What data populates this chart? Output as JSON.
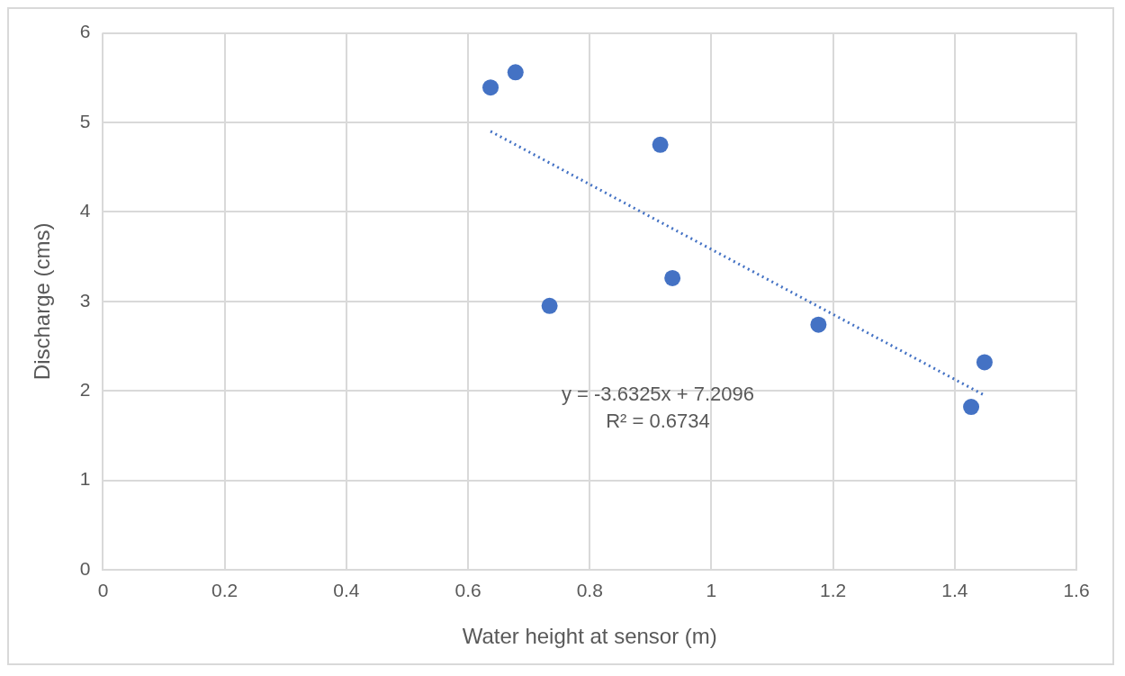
{
  "chart_data": {
    "type": "scatter",
    "xlabel": "Water height at sensor (m)",
    "ylabel": "Discharge (cms)",
    "xlim": [
      0,
      1.6
    ],
    "xticks": [
      0,
      0.2,
      0.4,
      0.6,
      0.8,
      1,
      1.2,
      1.4,
      1.6
    ],
    "ylim": [
      0,
      6
    ],
    "yticks": [
      0,
      1,
      2,
      3,
      4,
      5,
      6
    ],
    "grid": true,
    "legend": false,
    "series": [
      {
        "type": "scatter",
        "color": "#4472c4",
        "marker": "circle",
        "x": [
          0.637,
          0.678,
          0.734,
          0.916,
          0.936,
          1.176,
          1.427,
          1.449
        ],
        "values": [
          5.39,
          5.56,
          2.95,
          4.75,
          3.26,
          2.74,
          1.82,
          2.32
        ]
      },
      {
        "type": "line",
        "color": "#4472c4",
        "marker": "none",
        "line_style": "dotted",
        "x": [
          0.637,
          1.449
        ],
        "values": [
          4.9,
          1.95
        ]
      }
    ],
    "annotations": [
      "y = -3.6325x + 7.2096",
      "R² = 0.6734"
    ]
  }
}
